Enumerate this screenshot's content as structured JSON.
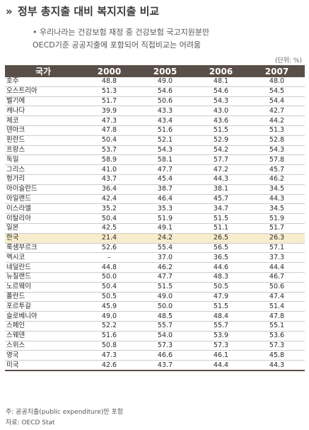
{
  "title": "정부 총지출 대비 복지지출 비교",
  "title_marker": "»",
  "notes": [
    "• 우리나라는 건강보험 재정 중 건강보험 국고지원분만",
    "OECD기준 공공지출에 포함되어 직접비교는 어려움"
  ],
  "unit": "(단위: %)",
  "table": {
    "headers": [
      "국가",
      "2000",
      "2005",
      "2006",
      "2007"
    ],
    "highlight_row": 17,
    "rows": [
      [
        "호주",
        "48.8",
        "49.0",
        "48.1",
        "48.0"
      ],
      [
        "오스트리아",
        "51.3",
        "54.6",
        "54.6",
        "54.5"
      ],
      [
        "벨기에",
        "51.7",
        "50.6",
        "54.3",
        "54.4"
      ],
      [
        "캐나다",
        "39.9",
        "43.3",
        "43.0",
        "42.7"
      ],
      [
        "체코",
        "47.3",
        "43.4",
        "43.6",
        "44.2"
      ],
      [
        "덴마크",
        "47.8",
        "51.6",
        "51.5",
        "51.3"
      ],
      [
        "핀란드",
        "50.4",
        "52.1",
        "52.9",
        "52.8"
      ],
      [
        "프랑스",
        "53.7",
        "54.3",
        "54.2",
        "54.3"
      ],
      [
        "독일",
        "58.9",
        "58.1",
        "57.7",
        "57.8"
      ],
      [
        "그리스",
        "41.0",
        "47.7",
        "47.2",
        "45.7"
      ],
      [
        "헝가리",
        "43.7",
        "45.4",
        "44.3",
        "46.2"
      ],
      [
        "아이슬란드",
        "36.4",
        "38.7",
        "38.1",
        "34.5"
      ],
      [
        "아일랜드",
        "42.4",
        "46.4",
        "45.7",
        "44.3"
      ],
      [
        "이스라엘",
        "35.2",
        "35.3",
        "34.7",
        "34.5"
      ],
      [
        "이탈리아",
        "50.4",
        "51.9",
        "51.5",
        "51.9"
      ],
      [
        "일본",
        "42.5",
        "49.1",
        "51.1",
        "51.7"
      ],
      [
        "한국",
        "21.4",
        "24.2",
        "26.5",
        "26.3"
      ],
      [
        "룩셈부르크",
        "52.6",
        "55.4",
        "56.5",
        "57.1"
      ],
      [
        "멕시코",
        "–",
        "37.0",
        "36.5",
        "37.3"
      ],
      [
        "네덜란드",
        "44.8",
        "46.2",
        "44.6",
        "44.4"
      ],
      [
        "뉴질랜드",
        "50.0",
        "47.7",
        "48.3",
        "46.7"
      ],
      [
        "노르웨이",
        "50.4",
        "51.5",
        "50.5",
        "50.6"
      ],
      [
        "폴란드",
        "50.5",
        "49.0",
        "47.9",
        "47.4"
      ],
      [
        "포르투갈",
        "45.9",
        "50.0",
        "51.5",
        "51.4"
      ],
      [
        "슬로베니아",
        "49.0",
        "48.5",
        "48.4",
        "47.8"
      ],
      [
        "스페인",
        "52.2",
        "55.7",
        "55.7",
        "55.1"
      ],
      [
        "스웨덴",
        "51.6",
        "54.0",
        "53.9",
        "53.6"
      ],
      [
        "스위스",
        "50.8",
        "57.3",
        "57.3",
        "57.3"
      ],
      [
        "영국",
        "47.3",
        "46.6",
        "46.1",
        "45.8"
      ],
      [
        "미국",
        "42.6",
        "43.7",
        "44.4",
        "44.3"
      ]
    ]
  },
  "footnotes": [
    "주: 공공지출(public expenditure)만 포함",
    "자료: OECD Stat"
  ],
  "colors": {
    "header_bg": "#5a4f48",
    "highlight_bg": "#f7eccc"
  }
}
